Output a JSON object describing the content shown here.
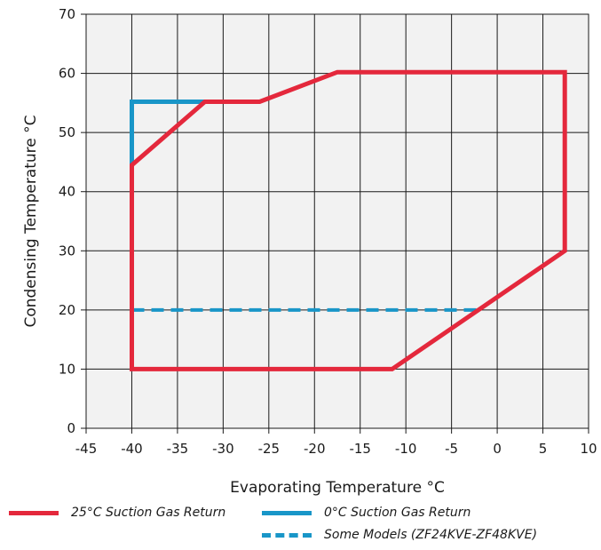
{
  "chart_data": {
    "type": "line",
    "xlabel": "Evaporating Temperature °C",
    "ylabel": "Condensing Temperature °C",
    "xlim": [
      -45,
      10
    ],
    "ylim": [
      0,
      70
    ],
    "xticks": [
      -45,
      -40,
      -35,
      -30,
      -25,
      -20,
      -15,
      -10,
      -5,
      0,
      5,
      10
    ],
    "yticks": [
      0,
      10,
      20,
      30,
      40,
      50,
      60,
      70
    ],
    "grid": true,
    "legend_position": "bottom",
    "series": [
      {
        "name": "25°C Suction Gas Return",
        "color": "#e4283c",
        "style": "solid",
        "x": [
          -40,
          -40,
          -32,
          -26,
          -17.5,
          7.4,
          7.4,
          -11.5,
          -40,
          -40
        ],
        "y": [
          10,
          44.5,
          55.2,
          55.2,
          60.2,
          60.2,
          30,
          10,
          10,
          44.5
        ]
      },
      {
        "name": "0°C Suction Gas Return",
        "color": "#1996c8",
        "style": "solid",
        "x": [
          -40,
          -40,
          -32
        ],
        "y": [
          44.5,
          55.2,
          55.2
        ]
      },
      {
        "name": "Some Models (ZF24KVE-ZF48KVE)",
        "color": "#1996c8",
        "style": "dashed",
        "x": [
          -40,
          -2
        ],
        "y": [
          20,
          20
        ]
      }
    ]
  }
}
